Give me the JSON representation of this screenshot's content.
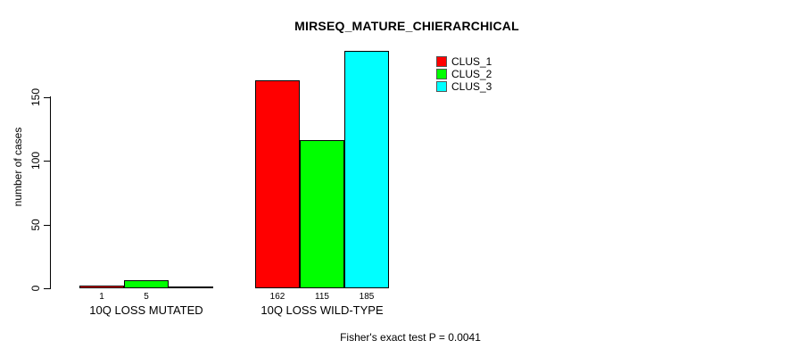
{
  "chart_data": {
    "type": "bar",
    "title": "MIRSEQ_MATURE_CHIERARCHICAL",
    "ylabel": "number of cases",
    "xlabel": "",
    "ylim": [
      0,
      185
    ],
    "axis_ticks": [
      0,
      50,
      100,
      150
    ],
    "grid": false,
    "legend_position": "right",
    "categories": [
      "10Q LOSS MUTATED",
      "10Q LOSS WILD-TYPE"
    ],
    "series": [
      {
        "name": "CLUS_1",
        "color": "#ff0000",
        "values": [
          1,
          162
        ]
      },
      {
        "name": "CLUS_2",
        "color": "#00ff00",
        "values": [
          5,
          115
        ]
      },
      {
        "name": "CLUS_3",
        "color": "#00ffff",
        "values": [
          0,
          185
        ]
      }
    ],
    "bar_value_labels": [
      [
        "1",
        "5",
        ""
      ],
      [
        "162",
        "115",
        "185"
      ]
    ],
    "annotation": "Fisher's exact test P = 0.0041"
  }
}
